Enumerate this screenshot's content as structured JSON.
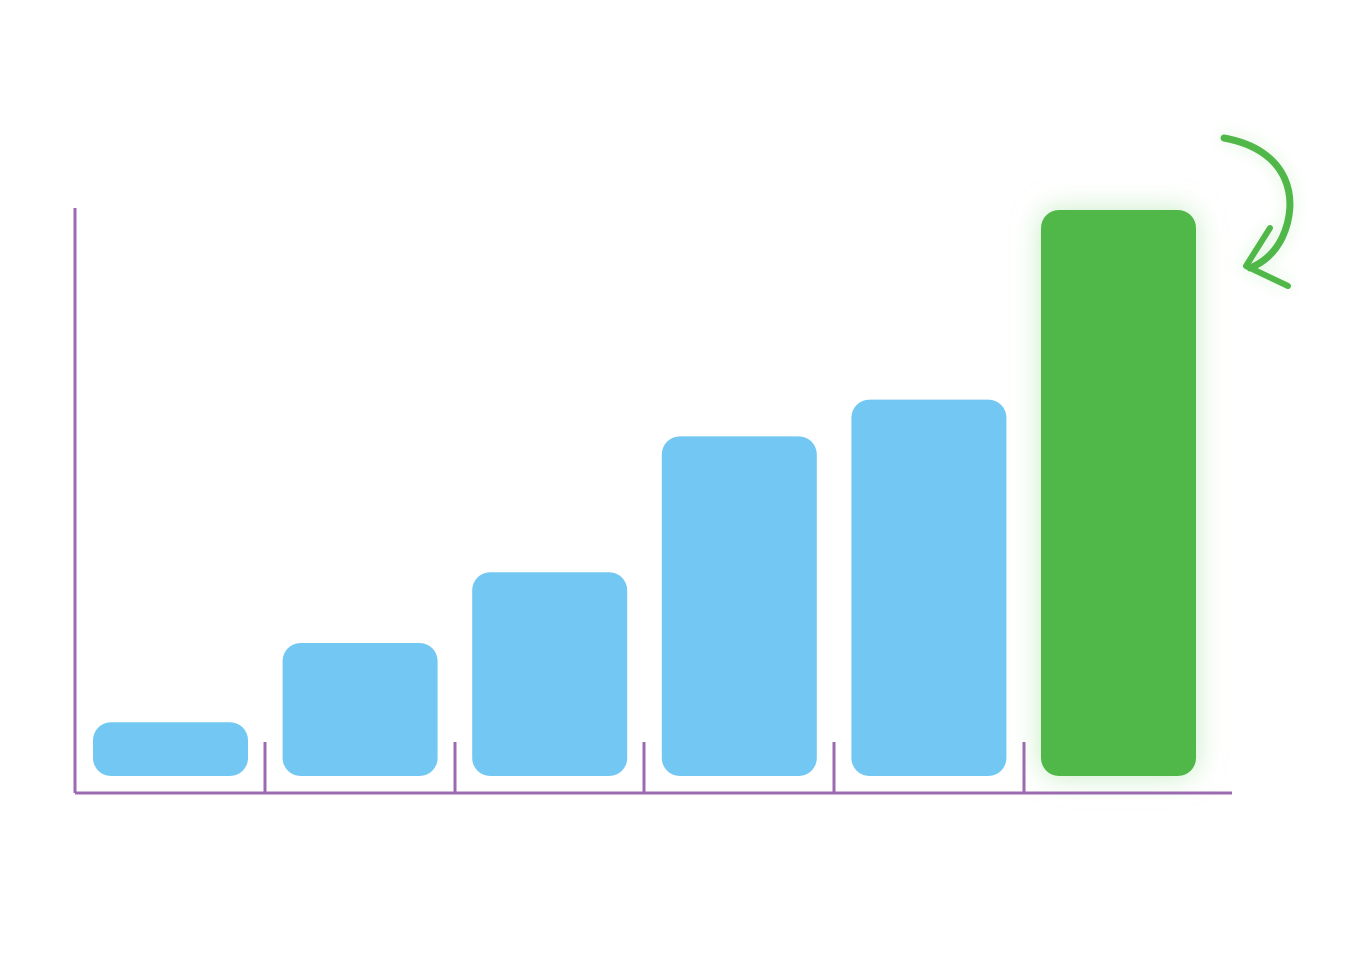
{
  "chart_data": {
    "type": "bar",
    "values": [
      9.5,
      23.5,
      36,
      60,
      66.5,
      100
    ],
    "colors": [
      "#72c8f2",
      "#72c8f2",
      "#72c8f2",
      "#72c8f2",
      "#72c8f2",
      "#50b848"
    ],
    "highlight": 5,
    "ylim": [
      0,
      100
    ]
  }
}
